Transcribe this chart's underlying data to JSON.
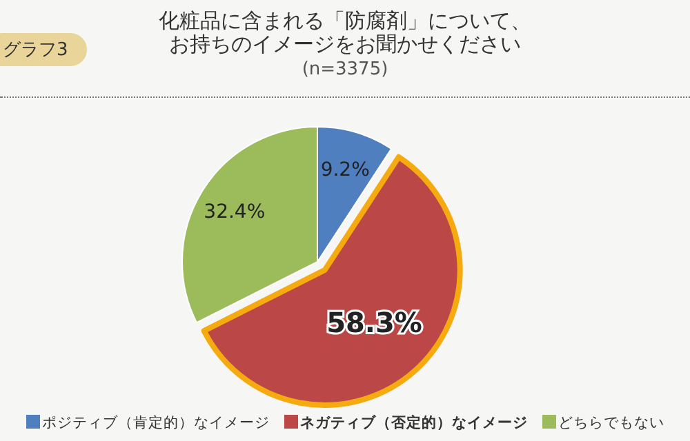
{
  "chart_data": {
    "type": "pie",
    "title": "化粧品に含まれる「防腐剤」について、お持ちのイメージをお聞かせください",
    "subtitle": "(n=3375)",
    "annotations": [
      "グラフ3"
    ],
    "categories": [
      "ポジティブ（肯定的）なイメージ",
      "ネガティブ（否定的）なイメージ",
      "どちらでもない"
    ],
    "values": [
      9.2,
      58.3,
      32.4
    ],
    "colors": [
      "#4f7fbf",
      "#bb4846",
      "#9cbb5a"
    ],
    "value_labels": [
      "9.2%",
      "58.3%",
      "32.4%"
    ],
    "legend": "bottom"
  }
}
